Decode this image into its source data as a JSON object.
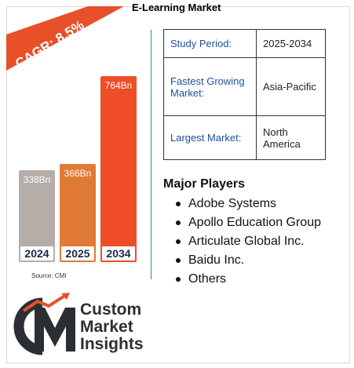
{
  "header": {
    "title": "E-Learning Market"
  },
  "badge": {
    "text": "CAGR: 8.5%",
    "color": "#e8502a"
  },
  "chart_data": {
    "type": "bar",
    "categories": [
      "2024",
      "2025",
      "2034"
    ],
    "values": [
      338,
      366,
      764
    ],
    "value_labels": [
      "338Bn",
      "366Bn",
      "764Bn"
    ],
    "colors": [
      "#b4ada8",
      "#e07a35",
      "#ef4d28"
    ],
    "title": "",
    "xlabel": "",
    "ylabel": "",
    "ylim": [
      0,
      800
    ],
    "grid": false,
    "legend": "none"
  },
  "info": [
    {
      "key": "Study Period:",
      "value": "2025-2034"
    },
    {
      "key": "Fastest Growing Market:",
      "value": "Asia-Pacific"
    },
    {
      "key": "Largest Market:",
      "value": "North America"
    }
  ],
  "players": {
    "title": "Major Players",
    "items": [
      "Adobe Systems",
      "Apollo Education Group",
      "Articulate Global Inc.",
      "Baidu Inc.",
      "Others"
    ]
  },
  "source": "Source: CMI",
  "logo": {
    "line1": "Custom",
    "line2": "Market",
    "line3": "Insights",
    "accent": "#e8502a",
    "dark": "#2b2f33"
  }
}
